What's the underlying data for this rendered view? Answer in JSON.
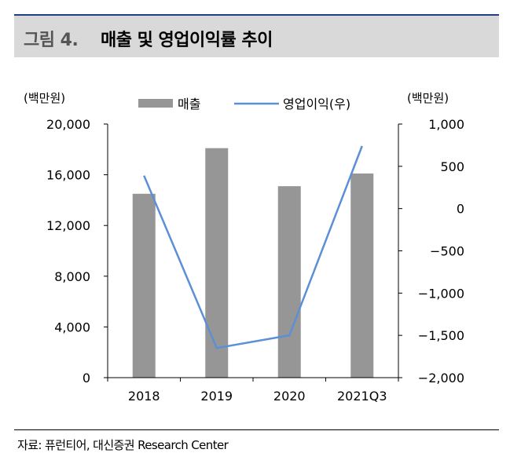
{
  "header": {
    "figure_label": "그림 4.",
    "figure_title": "매출 및 영업이익률 추이"
  },
  "footer": {
    "source": "자료: 퓨런티어, 대신증권 Research Center"
  },
  "chart_data": {
    "type": "bar+line",
    "title": "매출 및 영업이익률 추이",
    "categories": [
      "2018",
      "2019",
      "2020",
      "2021Q3"
    ],
    "left_unit": "(백만원)",
    "right_unit": "(백만원)",
    "left_axis": {
      "min": 0,
      "max": 20000,
      "ticks": [
        0,
        4000,
        8000,
        12000,
        16000,
        20000
      ],
      "tick_labels": [
        "0",
        "4,000",
        "8,000",
        "12,000",
        "16,000",
        "20,000"
      ]
    },
    "right_axis": {
      "min": -2000,
      "max": 1000,
      "ticks": [
        -2000,
        -1500,
        -1000,
        -500,
        0,
        500,
        1000
      ],
      "tick_labels": [
        "−2,000",
        "−1,500",
        "−1,000",
        "−500",
        "0",
        "500",
        "1,000"
      ]
    },
    "series": [
      {
        "name": "매출",
        "type": "bar",
        "axis": "left",
        "color": "#969696",
        "values": [
          14500,
          18100,
          15100,
          16100
        ]
      },
      {
        "name": "영업이익(우)",
        "type": "line",
        "axis": "right",
        "color": "#5b8fd6",
        "values": [
          390,
          -1650,
          -1500,
          740
        ]
      }
    ],
    "legend": {
      "position": "top-center",
      "entries": [
        "매출",
        "영업이익(우)"
      ]
    },
    "grid": false
  }
}
